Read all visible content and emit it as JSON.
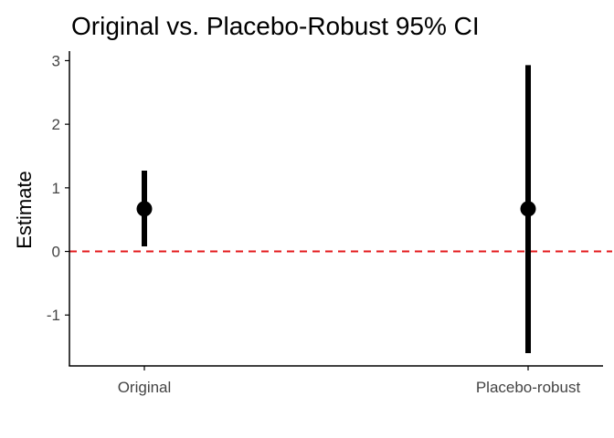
{
  "chart_data": {
    "type": "scatter",
    "title": "Original vs. Placebo-Robust 95% CI",
    "xlabel": "",
    "ylabel": "Estimate",
    "categories": [
      "Original",
      "Placebo-robust"
    ],
    "estimates": [
      0.67,
      0.67
    ],
    "ci_lower": [
      0.08,
      -1.6
    ],
    "ci_upper": [
      1.27,
      2.93
    ],
    "y_ticks": [
      -1,
      0,
      1,
      2,
      3
    ],
    "ylim": [
      -1.8,
      3.15
    ],
    "reference_line": {
      "y": 0,
      "color": "#e41a1c",
      "style": "dashed"
    },
    "point_color": "#000000",
    "grid": false,
    "legend": "none"
  }
}
